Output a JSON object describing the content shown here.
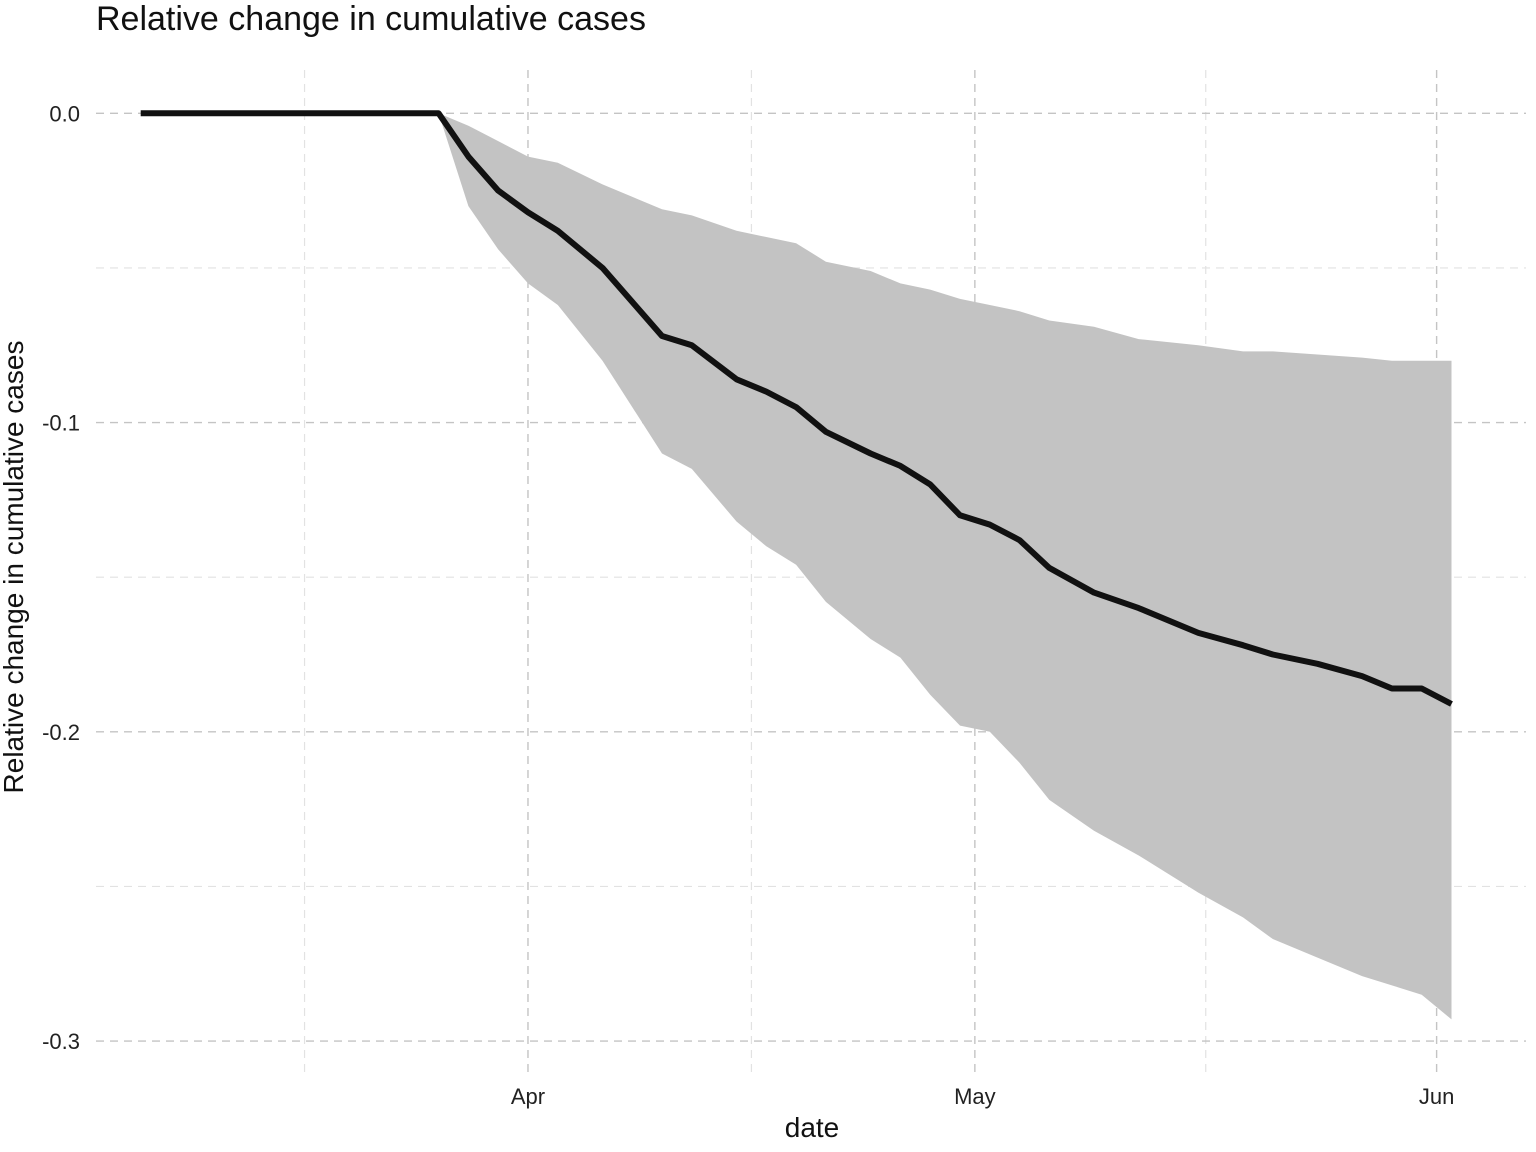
{
  "chart_data": {
    "type": "area",
    "title": "Relative change in cumulative cases",
    "xlabel": "date",
    "ylabel": "Relative change in cumulative cases",
    "x_ticks": [
      {
        "date": "2020-04-01",
        "label": "Apr"
      },
      {
        "date": "2020-05-01",
        "label": "May"
      },
      {
        "date": "2020-06-01",
        "label": "Jun"
      }
    ],
    "y_ticks": [
      {
        "value": 0.0,
        "label": "0.0"
      },
      {
        "value": -0.1,
        "label": "-0.1"
      },
      {
        "value": -0.2,
        "label": "-0.2"
      },
      {
        "value": -0.3,
        "label": "-0.3"
      }
    ],
    "xlim": [
      "2020-03-03",
      "2020-06-07"
    ],
    "ylim": [
      -0.31,
      0.014
    ],
    "grid": true,
    "line_color": "#111111",
    "band_color": "#c3c3c3",
    "series": [
      {
        "x": [
          "2020-03-06",
          "2020-03-16",
          "2020-03-26",
          "2020-03-28",
          "2020-03-30",
          "2020-04-01",
          "2020-04-03",
          "2020-04-06",
          "2020-04-10",
          "2020-04-12",
          "2020-04-15",
          "2020-04-17",
          "2020-04-19",
          "2020-04-21",
          "2020-04-24",
          "2020-04-26",
          "2020-04-28",
          "2020-04-30",
          "2020-05-02",
          "2020-05-04",
          "2020-05-06",
          "2020-05-09",
          "2020-05-12",
          "2020-05-16",
          "2020-05-19",
          "2020-05-21",
          "2020-05-24",
          "2020-05-27",
          "2020-05-29",
          "2020-05-31",
          "2020-06-02"
        ],
        "y": [
          0.0,
          0.0,
          0.0,
          -0.014,
          -0.025,
          -0.032,
          -0.038,
          -0.05,
          -0.072,
          -0.075,
          -0.086,
          -0.09,
          -0.095,
          -0.103,
          -0.11,
          -0.114,
          -0.12,
          -0.13,
          -0.133,
          -0.138,
          -0.147,
          -0.155,
          -0.16,
          -0.168,
          -0.172,
          -0.175,
          -0.178,
          -0.182,
          -0.186,
          -0.186,
          -0.191
        ],
        "y_upper": [
          0.0,
          0.0,
          0.0,
          -0.004,
          -0.009,
          -0.014,
          -0.016,
          -0.023,
          -0.031,
          -0.033,
          -0.038,
          -0.04,
          -0.042,
          -0.048,
          -0.051,
          -0.055,
          -0.057,
          -0.06,
          -0.062,
          -0.064,
          -0.067,
          -0.069,
          -0.073,
          -0.075,
          -0.077,
          -0.077,
          -0.078,
          -0.079,
          -0.08,
          -0.08,
          -0.08
        ],
        "y_lower": [
          0.0,
          0.0,
          0.0,
          -0.03,
          -0.044,
          -0.055,
          -0.062,
          -0.08,
          -0.11,
          -0.115,
          -0.132,
          -0.14,
          -0.146,
          -0.158,
          -0.17,
          -0.176,
          -0.188,
          -0.198,
          -0.2,
          -0.21,
          -0.222,
          -0.232,
          -0.24,
          -0.252,
          -0.26,
          -0.267,
          -0.273,
          -0.279,
          -0.282,
          -0.285,
          -0.293
        ]
      }
    ]
  }
}
